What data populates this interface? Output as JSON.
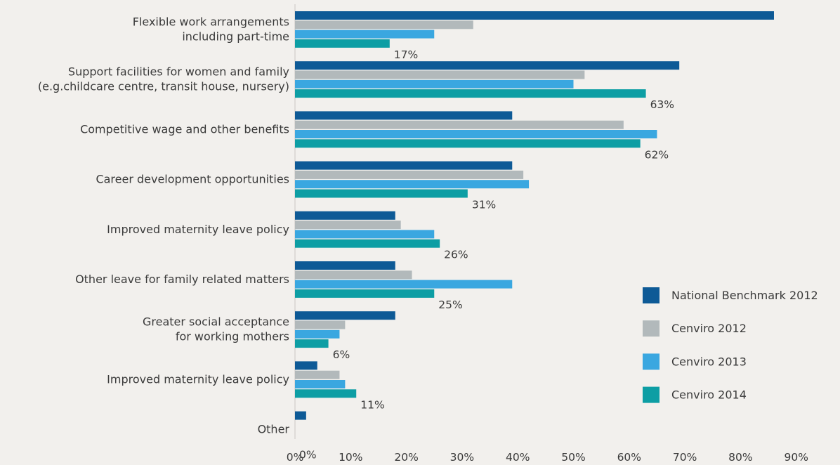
{
  "chart_data": {
    "type": "bar",
    "orientation": "horizontal",
    "categories": [
      [
        "Flexible work arrangements",
        "including part-time"
      ],
      [
        "Support facilities for women and family",
        "(e.g.childcare centre, transit house, nursery)"
      ],
      [
        "Competitive wage and other benefits"
      ],
      [
        "Career development opportunities"
      ],
      [
        "Improved maternity leave policy"
      ],
      [
        "Other leave for family related matters"
      ],
      [
        "Greater social acceptance",
        "for working mothers"
      ],
      [
        "Improved maternity leave policy"
      ],
      [
        "Other"
      ]
    ],
    "series": [
      {
        "name": "National Benchmark 2012",
        "color": "#0e5a96",
        "values": [
          86,
          69,
          39,
          39,
          18,
          18,
          18,
          4,
          2
        ]
      },
      {
        "name": "Cenviro 2012",
        "color": "#b2b9bb",
        "values": [
          32,
          52,
          59,
          41,
          19,
          21,
          9,
          8,
          0
        ]
      },
      {
        "name": "Cenviro 2013",
        "color": "#3aa7e0",
        "values": [
          25,
          50,
          65,
          42,
          25,
          39,
          8,
          9,
          0
        ]
      },
      {
        "name": "Cenviro 2014",
        "color": "#0d9ea4",
        "values": [
          17,
          63,
          62,
          31,
          26,
          25,
          6,
          11,
          0
        ]
      }
    ],
    "data_labels": [
      "17%",
      "63%",
      "62%",
      "31%",
      "26%",
      "25%",
      "6%",
      "11%",
      "0%"
    ],
    "x_ticks": [
      "0%",
      "10%",
      "20%",
      "30%",
      "40%",
      "50%",
      "60%",
      "70%",
      "80%",
      "90%"
    ],
    "xlim": [
      0,
      90
    ],
    "title": "",
    "xlabel": "",
    "ylabel": "",
    "grid": false,
    "legend_position": "right"
  }
}
